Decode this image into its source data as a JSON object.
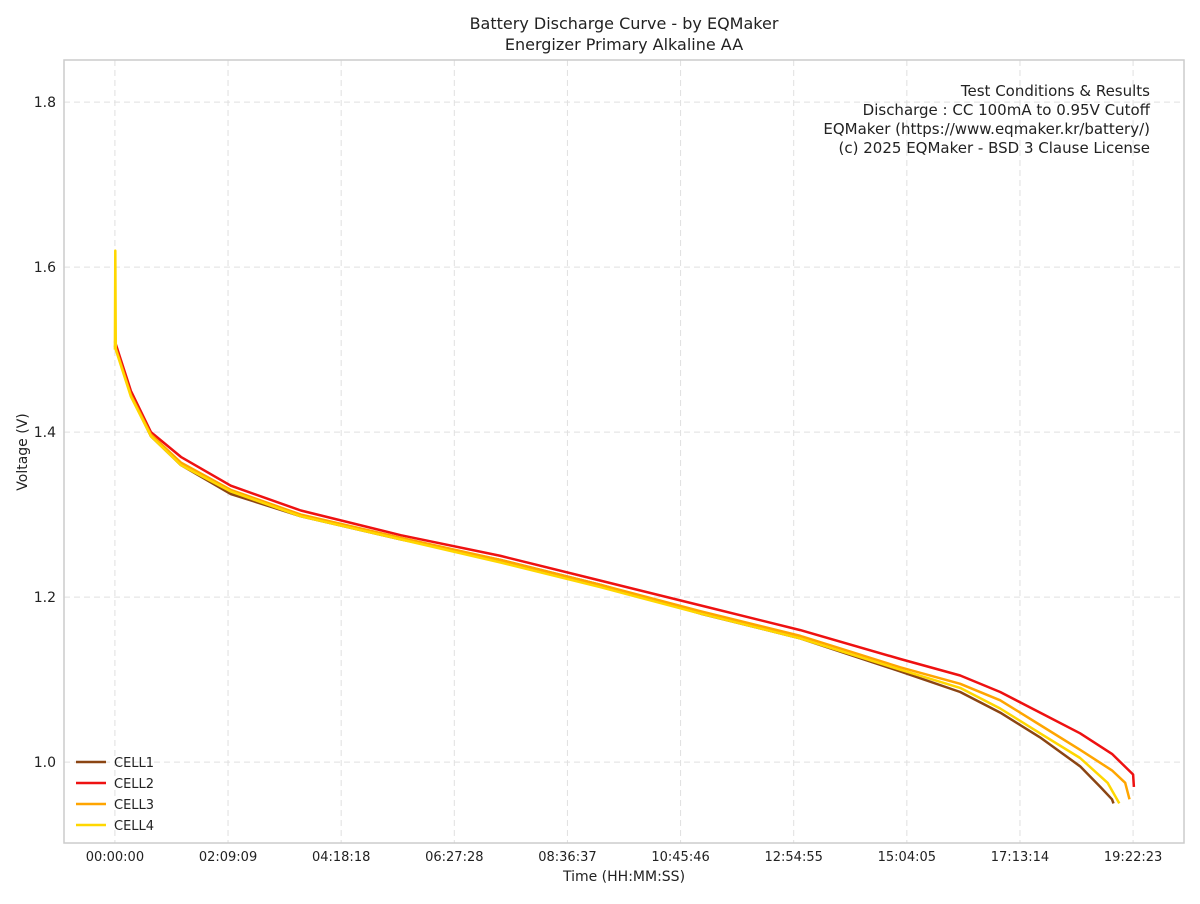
{
  "chart_data": {
    "type": "line",
    "title": "Battery Discharge Curve - by EQMaker",
    "subtitle": "Energizer Primary Alkaline AA",
    "xlabel": "Time (HH:MM:SS)",
    "ylabel": "Voltage (V)",
    "annotation": [
      "Test Conditions & Results",
      "Discharge : CC 100mA to 0.95V Cutoff",
      "EQMaker (https://www.eqmaker.kr/battery/)",
      "(c) 2025 EQMaker - BSD 3 Clause License"
    ],
    "xlim": [
      -3487,
      73230
    ],
    "ylim": [
      0.902,
      1.851
    ],
    "xticks": [
      {
        "value": 0,
        "label": "00:00:00"
      },
      {
        "value": 7749,
        "label": "02:09:09"
      },
      {
        "value": 15498,
        "label": "04:18:18"
      },
      {
        "value": 23248,
        "label": "06:27:28"
      },
      {
        "value": 30997,
        "label": "08:36:37"
      },
      {
        "value": 38746,
        "label": "10:45:46"
      },
      {
        "value": 46495,
        "label": "12:54:55"
      },
      {
        "value": 54245,
        "label": "15:04:05"
      },
      {
        "value": 61994,
        "label": "17:13:14"
      },
      {
        "value": 69743,
        "label": "19:22:23"
      }
    ],
    "yticks": [
      {
        "value": 1,
        "label": "1.0"
      },
      {
        "value": 1.2,
        "label": "1.2"
      },
      {
        "value": 1.4,
        "label": "1.4"
      },
      {
        "value": 1.6,
        "label": "1.6"
      },
      {
        "value": 1.8,
        "label": "1.8"
      }
    ],
    "grid": true,
    "legend": "lower left",
    "series": [
      {
        "name": "CELL1",
        "color": "#8b4513",
        "x": [
          0,
          1095,
          2464,
          4517,
          7939,
          12730,
          19574,
          26418,
          33262,
          40106,
          46950,
          53794,
          57900,
          60638,
          63375,
          66113,
          67500,
          68300,
          68400
        ],
        "values": [
          1.505,
          1.445,
          1.395,
          1.36,
          1.325,
          1.298,
          1.27,
          1.245,
          1.215,
          1.18,
          1.15,
          1.11,
          1.085,
          1.06,
          1.03,
          0.995,
          0.97,
          0.955,
          0.95
        ]
      },
      {
        "name": "CELL2",
        "color": "#ee1111",
        "x": [
          0,
          1095,
          2464,
          4517,
          7939,
          12730,
          19574,
          26418,
          33262,
          40106,
          46950,
          53794,
          57900,
          60638,
          63375,
          66113,
          68300,
          69743,
          69800
        ],
        "values": [
          1.51,
          1.45,
          1.4,
          1.37,
          1.335,
          1.305,
          1.275,
          1.25,
          1.22,
          1.19,
          1.16,
          1.125,
          1.105,
          1.085,
          1.06,
          1.035,
          1.01,
          0.985,
          0.97
        ]
      },
      {
        "name": "CELL3",
        "color": "#ffa500",
        "x": [
          0,
          1095,
          2464,
          4517,
          7939,
          12730,
          19574,
          26418,
          33262,
          40106,
          46950,
          53794,
          57900,
          60638,
          63375,
          66113,
          68300,
          69200,
          69500
        ],
        "values": [
          1.505,
          1.445,
          1.397,
          1.363,
          1.33,
          1.3,
          1.272,
          1.245,
          1.215,
          1.183,
          1.153,
          1.115,
          1.095,
          1.075,
          1.045,
          1.015,
          0.99,
          0.975,
          0.955
        ]
      },
      {
        "name": "CELL4",
        "color": "#ffd700",
        "x": [
          0,
          30,
          60,
          1095,
          2464,
          4517,
          7939,
          12730,
          19574,
          26418,
          33262,
          40106,
          46950,
          53794,
          57900,
          60638,
          63375,
          66113,
          68000,
          68800
        ],
        "values": [
          1.5,
          1.62,
          1.5,
          1.443,
          1.395,
          1.36,
          1.328,
          1.298,
          1.27,
          1.242,
          1.212,
          1.18,
          1.15,
          1.112,
          1.09,
          1.065,
          1.035,
          1.005,
          0.975,
          0.95
        ]
      }
    ]
  }
}
